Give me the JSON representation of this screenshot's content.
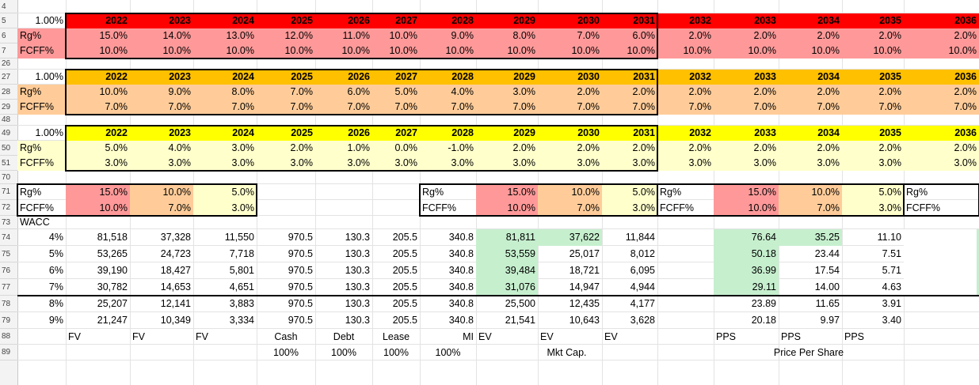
{
  "colors": {
    "red_header": "#ff0000",
    "red_fill": "#ff9999",
    "orange_header": "#ffc000",
    "orange_fill": "#ffcc99",
    "yellow_header": "#ffff00",
    "yellow_fill": "#ffffcc",
    "green_fill": "#c6efce"
  },
  "rows": [
    {
      "label": "4",
      "h": 17
    },
    {
      "label": "5",
      "h": 19
    },
    {
      "label": "6",
      "h": 19
    },
    {
      "label": "7",
      "h": 19
    },
    {
      "label": "26",
      "h": 14
    },
    {
      "label": "27",
      "h": 19
    },
    {
      "label": "28",
      "h": 19
    },
    {
      "label": "29",
      "h": 19
    },
    {
      "label": "48",
      "h": 14
    },
    {
      "label": "49",
      "h": 19
    },
    {
      "label": "50",
      "h": 19
    },
    {
      "label": "51",
      "h": 19
    },
    {
      "label": "70",
      "h": 17
    },
    {
      "label": "71",
      "h": 20
    },
    {
      "label": "72",
      "h": 20
    },
    {
      "label": "73",
      "h": 17
    },
    {
      "label": "74",
      "h": 21
    },
    {
      "label": "75",
      "h": 21
    },
    {
      "label": "76",
      "h": 21
    },
    {
      "label": "77",
      "h": 21
    },
    {
      "label": "78",
      "h": 21
    },
    {
      "label": "79",
      "h": 21
    },
    {
      "label": "88",
      "h": 20
    },
    {
      "label": "89",
      "h": 20
    }
  ],
  "years_main": [
    "2022",
    "2023",
    "2024",
    "2025",
    "2026",
    "2027",
    "2028",
    "2029",
    "2030",
    "2031"
  ],
  "years_ext": [
    "2032",
    "2033",
    "2034",
    "2035",
    "2036"
  ],
  "scenarios": [
    {
      "key": "red",
      "rate": "1.00%",
      "header_color": "#ff0000",
      "fill_color": "#ff9999",
      "rg_label": "Rg%",
      "fcff_label": "FCFF%",
      "rg": [
        "15.0%",
        "14.0%",
        "13.0%",
        "12.0%",
        "11.0%",
        "10.0%",
        "9.0%",
        "8.0%",
        "7.0%",
        "6.0%",
        "2.0%",
        "2.0%",
        "2.0%",
        "2.0%",
        "2.0%"
      ],
      "fcff": [
        "10.0%",
        "10.0%",
        "10.0%",
        "10.0%",
        "10.0%",
        "10.0%",
        "10.0%",
        "10.0%",
        "10.0%",
        "10.0%",
        "10.0%",
        "10.0%",
        "10.0%",
        "10.0%",
        "10.0%"
      ]
    },
    {
      "key": "orange",
      "rate": "1.00%",
      "header_color": "#ffc000",
      "fill_color": "#ffcc99",
      "rg_label": "Rg%",
      "fcff_label": "FCFF%",
      "rg": [
        "10.0%",
        "9.0%",
        "8.0%",
        "7.0%",
        "6.0%",
        "5.0%",
        "4.0%",
        "3.0%",
        "2.0%",
        "2.0%",
        "2.0%",
        "2.0%",
        "2.0%",
        "2.0%",
        "2.0%"
      ],
      "fcff": [
        "7.0%",
        "7.0%",
        "7.0%",
        "7.0%",
        "7.0%",
        "7.0%",
        "7.0%",
        "7.0%",
        "7.0%",
        "7.0%",
        "7.0%",
        "7.0%",
        "7.0%",
        "7.0%",
        "7.0%"
      ]
    },
    {
      "key": "yellow",
      "rate": "1.00%",
      "header_color": "#ffff00",
      "fill_color": "#ffffcc",
      "rg_label": "Rg%",
      "fcff_label": "FCFF%",
      "rg": [
        "5.0%",
        "4.0%",
        "3.0%",
        "2.0%",
        "1.0%",
        "0.0%",
        "-1.0%",
        "2.0%",
        "2.0%",
        "2.0%",
        "2.0%",
        "2.0%",
        "2.0%",
        "2.0%",
        "2.0%"
      ],
      "fcff": [
        "3.0%",
        "3.0%",
        "3.0%",
        "3.0%",
        "3.0%",
        "3.0%",
        "3.0%",
        "3.0%",
        "3.0%",
        "3.0%",
        "3.0%",
        "3.0%",
        "3.0%",
        "3.0%",
        "3.0%"
      ]
    }
  ],
  "summary": {
    "rg_label": "Rg%",
    "fcff_label": "FCFF%",
    "rg": [
      "15.0%",
      "10.0%",
      "5.0%"
    ],
    "fcff": [
      "10.0%",
      "7.0%",
      "3.0%"
    ]
  },
  "wacc_label": "WACC",
  "valuation": [
    {
      "wacc": "4%",
      "fv": [
        "81,518",
        "37,328",
        "11,550"
      ],
      "cash": "970.5",
      "debt": "130.3",
      "lease": "205.5",
      "mi": "340.8",
      "ev": [
        "81,811",
        "37,622",
        "11,844"
      ],
      "pps": [
        "76.64",
        "35.25",
        "11.10"
      ],
      "ev_hl": [
        true,
        true,
        false
      ],
      "pps_hl": [
        true,
        true,
        false
      ]
    },
    {
      "wacc": "5%",
      "fv": [
        "53,265",
        "24,723",
        "7,718"
      ],
      "cash": "970.5",
      "debt": "130.3",
      "lease": "205.5",
      "mi": "340.8",
      "ev": [
        "53,559",
        "25,017",
        "8,012"
      ],
      "pps": [
        "50.18",
        "23.44",
        "7.51"
      ],
      "ev_hl": [
        true,
        false,
        false
      ],
      "pps_hl": [
        true,
        false,
        false
      ]
    },
    {
      "wacc": "6%",
      "fv": [
        "39,190",
        "18,427",
        "5,801"
      ],
      "cash": "970.5",
      "debt": "130.3",
      "lease": "205.5",
      "mi": "340.8",
      "ev": [
        "39,484",
        "18,721",
        "6,095"
      ],
      "pps": [
        "36.99",
        "17.54",
        "5.71"
      ],
      "ev_hl": [
        true,
        false,
        false
      ],
      "pps_hl": [
        true,
        false,
        false
      ]
    },
    {
      "wacc": "7%",
      "fv": [
        "30,782",
        "14,653",
        "4,651"
      ],
      "cash": "970.5",
      "debt": "130.3",
      "lease": "205.5",
      "mi": "340.8",
      "ev": [
        "31,076",
        "14,947",
        "4,944"
      ],
      "pps": [
        "29.11",
        "14.00",
        "4.63"
      ],
      "ev_hl": [
        true,
        false,
        false
      ],
      "pps_hl": [
        true,
        false,
        false
      ]
    },
    {
      "wacc": "8%",
      "fv": [
        "25,207",
        "12,141",
        "3,883"
      ],
      "cash": "970.5",
      "debt": "130.3",
      "lease": "205.5",
      "mi": "340.8",
      "ev": [
        "25,500",
        "12,435",
        "4,177"
      ],
      "pps": [
        "23.89",
        "11.65",
        "3.91"
      ],
      "ev_hl": [
        false,
        false,
        false
      ],
      "pps_hl": [
        false,
        false,
        false
      ]
    },
    {
      "wacc": "9%",
      "fv": [
        "21,247",
        "10,349",
        "3,334"
      ],
      "cash": "970.5",
      "debt": "130.3",
      "lease": "205.5",
      "mi": "340.8",
      "ev": [
        "21,541",
        "10,643",
        "3,628"
      ],
      "pps": [
        "20.18",
        "9.97",
        "3.40"
      ],
      "ev_hl": [
        false,
        false,
        false
      ],
      "pps_hl": [
        false,
        false,
        false
      ]
    }
  ],
  "footer": {
    "fv": [
      "FV",
      "FV",
      "FV"
    ],
    "cash": "Cash",
    "debt": "Debt",
    "lease": "Lease",
    "mi": "MI",
    "ev": [
      "EV",
      "EV",
      "EV"
    ],
    "pps": [
      "PPS",
      "PPS",
      "PPS"
    ],
    "pcts": [
      "100%",
      "100%",
      "100%",
      "100%"
    ],
    "mkt_cap": "Mkt Cap.",
    "price_per_share": "Price Per Share"
  }
}
